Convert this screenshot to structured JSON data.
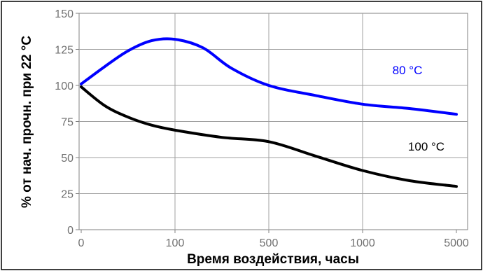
{
  "chart_data": {
    "type": "line",
    "xlabel": "Время воздействия, часы",
    "ylabel": "% от нач.  прочн. при 22 °C",
    "x_ticks": [
      "0",
      "100",
      "500",
      "1000",
      "5000"
    ],
    "y_ticks": [
      0,
      25,
      50,
      75,
      100,
      125,
      150
    ],
    "ylim": [
      0,
      150
    ],
    "x_scale": "categorical-equal-spacing",
    "grid": true,
    "legend": "inline-labels",
    "series": [
      {
        "name": "80 °C",
        "color": "#0000ff",
        "points": [
          [
            0.0,
            101
          ],
          [
            0.25,
            113
          ],
          [
            0.5,
            124
          ],
          [
            0.75,
            131
          ],
          [
            1.0,
            132
          ],
          [
            1.3,
            126
          ],
          [
            1.6,
            112
          ],
          [
            2.0,
            100
          ],
          [
            2.5,
            93
          ],
          [
            3.0,
            87
          ],
          [
            3.5,
            84
          ],
          [
            4.0,
            80
          ]
        ]
      },
      {
        "name": "100 °C",
        "color": "#000000",
        "points": [
          [
            0.0,
            99
          ],
          [
            0.25,
            86
          ],
          [
            0.5,
            78
          ],
          [
            0.75,
            72.5
          ],
          [
            1.0,
            69
          ],
          [
            1.5,
            64
          ],
          [
            2.0,
            61
          ],
          [
            2.5,
            51
          ],
          [
            3.0,
            41
          ],
          [
            3.5,
            34
          ],
          [
            4.0,
            30
          ]
        ]
      }
    ]
  }
}
